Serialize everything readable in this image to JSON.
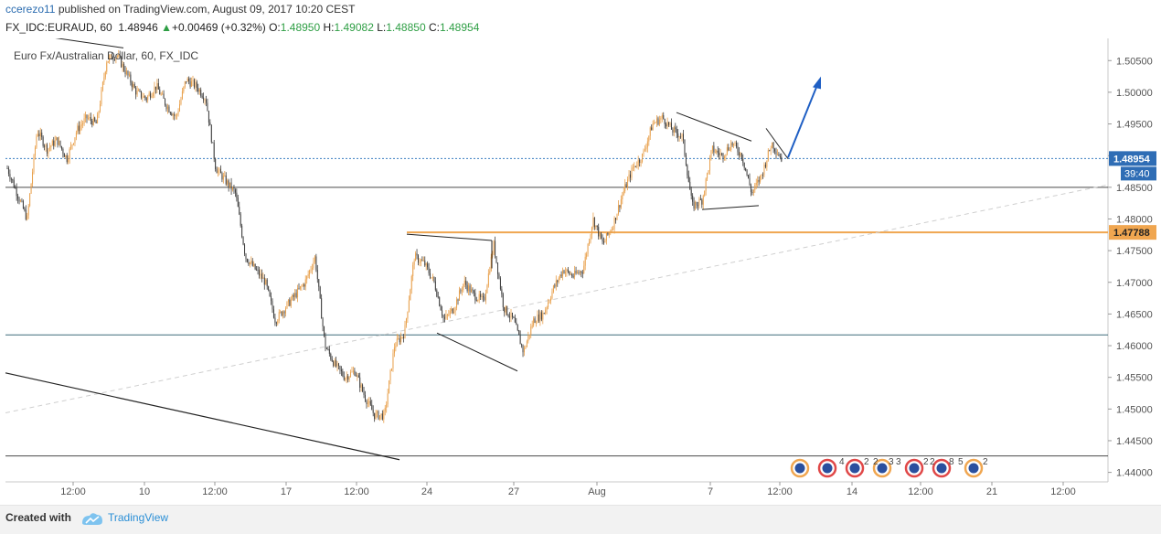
{
  "header": {
    "author": "ccerezo11",
    "published_text": " published on TradingView.com, August 09, 2017 10:20 CEST",
    "symbol": "FX_IDC:EURAUD, 60",
    "last": "1.48946",
    "arrow": "▲",
    "change": "+0.00469 (+0.32%)",
    "o_label": "O:",
    "o_value": "1.48950",
    "h_label": "H:",
    "h_value": "1.49082",
    "l_label": "L:",
    "l_value": "1.48850",
    "c_label": "C:",
    "c_value": "1.48954"
  },
  "chart_data": {
    "type": "candlestick",
    "title": "Euro Fx/Australian Dollar, 60, FX_IDC",
    "y_ticks": [
      "1.50500",
      "1.50000",
      "1.49500",
      "1.49000",
      "1.48500",
      "1.48000",
      "1.47500",
      "1.47000",
      "1.46500",
      "1.46000",
      "1.45500",
      "1.45000",
      "1.44500",
      "1.44000"
    ],
    "x_ticks": [
      "12:00",
      "10",
      "12:00",
      "17",
      "12:00",
      "24",
      "27",
      "Aug",
      "7",
      "12:00",
      "14",
      "12:00",
      "21",
      "12:00"
    ],
    "ylim": [
      1.4385,
      1.5085
    ],
    "price_label": "1.48954",
    "countdown": "39:40",
    "level_label": "1.47788",
    "levels": {
      "last": 1.48954,
      "orange": 1.47788,
      "upper_support": 1.485,
      "lower_support": 1.4617,
      "bottom": 1.4426
    },
    "close_path": [
      [
        0,
        1.488
      ],
      [
        1,
        1.484
      ],
      [
        2,
        1.48
      ],
      [
        3,
        1.494
      ],
      [
        4,
        1.491
      ],
      [
        5,
        1.4925
      ],
      [
        6,
        1.4895
      ],
      [
        7,
        1.494
      ],
      [
        8,
        1.496
      ],
      [
        9,
        1.495
      ],
      [
        10,
        1.505
      ],
      [
        11,
        1.506
      ],
      [
        12,
        1.503
      ],
      [
        13,
        1.5
      ],
      [
        14,
        1.499
      ],
      [
        15,
        1.501
      ],
      [
        16,
        1.498
      ],
      [
        17,
        1.496
      ],
      [
        18,
        1.502
      ],
      [
        19,
        1.501
      ],
      [
        20,
        1.499
      ],
      [
        21,
        1.488
      ],
      [
        22,
        1.486
      ],
      [
        23,
        1.484
      ],
      [
        24,
        1.474
      ],
      [
        25,
        1.472
      ],
      [
        26,
        1.47
      ],
      [
        27,
        1.464
      ],
      [
        28,
        1.466
      ],
      [
        29,
        1.468
      ],
      [
        30,
        1.47
      ],
      [
        31,
        1.474
      ],
      [
        32,
        1.46
      ],
      [
        33,
        1.457
      ],
      [
        34,
        1.455
      ],
      [
        35,
        1.456
      ],
      [
        36,
        1.452
      ],
      [
        37,
        1.449
      ],
      [
        38,
        1.449
      ],
      [
        39,
        1.46
      ],
      [
        40,
        1.462
      ],
      [
        41,
        1.474
      ],
      [
        42,
        1.473
      ],
      [
        43,
        1.47
      ],
      [
        44,
        1.464
      ],
      [
        45,
        1.466
      ],
      [
        46,
        1.47
      ],
      [
        47,
        1.468
      ],
      [
        48,
        1.467
      ],
      [
        49,
        1.476
      ],
      [
        50,
        1.466
      ],
      [
        51,
        1.464
      ],
      [
        52,
        1.459
      ],
      [
        53,
        1.464
      ],
      [
        54,
        1.465
      ],
      [
        55,
        1.469
      ],
      [
        56,
        1.472
      ],
      [
        57,
        1.471
      ],
      [
        58,
        1.472
      ],
      [
        59,
        1.48
      ],
      [
        60,
        1.476
      ],
      [
        61,
        1.479
      ],
      [
        62,
        1.484
      ],
      [
        63,
        1.488
      ],
      [
        64,
        1.49
      ],
      [
        65,
        1.495
      ],
      [
        66,
        1.496
      ],
      [
        67,
        1.494
      ],
      [
        68,
        1.493
      ],
      [
        69,
        1.482
      ],
      [
        70,
        1.483
      ],
      [
        71,
        1.491
      ],
      [
        72,
        1.49
      ],
      [
        73,
        1.492
      ],
      [
        74,
        1.49
      ],
      [
        75,
        1.484
      ],
      [
        76,
        1.487
      ],
      [
        77,
        1.492
      ],
      [
        78,
        1.4895
      ]
    ],
    "drawings": [
      {
        "type": "wedge",
        "from": [
          0,
          1.509
        ],
        "to": [
          12,
          1.507
        ]
      },
      {
        "type": "triangle-upper",
        "from": [
          42,
          1.4776
        ],
        "to": [
          50,
          1.4766
        ]
      },
      {
        "type": "triangle-lower",
        "from": [
          45,
          1.462
        ],
        "to": [
          52,
          1.456
        ]
      },
      {
        "type": "flag-upper",
        "from": [
          70,
          1.4968
        ],
        "to": [
          77,
          1.4923
        ]
      },
      {
        "type": "flag-lower",
        "from": [
          70,
          1.4815
        ],
        "to": [
          76,
          1.482
        ]
      },
      {
        "type": "arrow",
        "from": [
          78,
          1.49
        ],
        "to": [
          81,
          1.497
        ]
      }
    ],
    "event_counts": [
      "4",
      "2",
      "2",
      "3",
      "3",
      "2",
      "2",
      "8",
      "5",
      "2"
    ]
  },
  "footer": {
    "created_with": "Created with",
    "brand": "TradingView"
  }
}
